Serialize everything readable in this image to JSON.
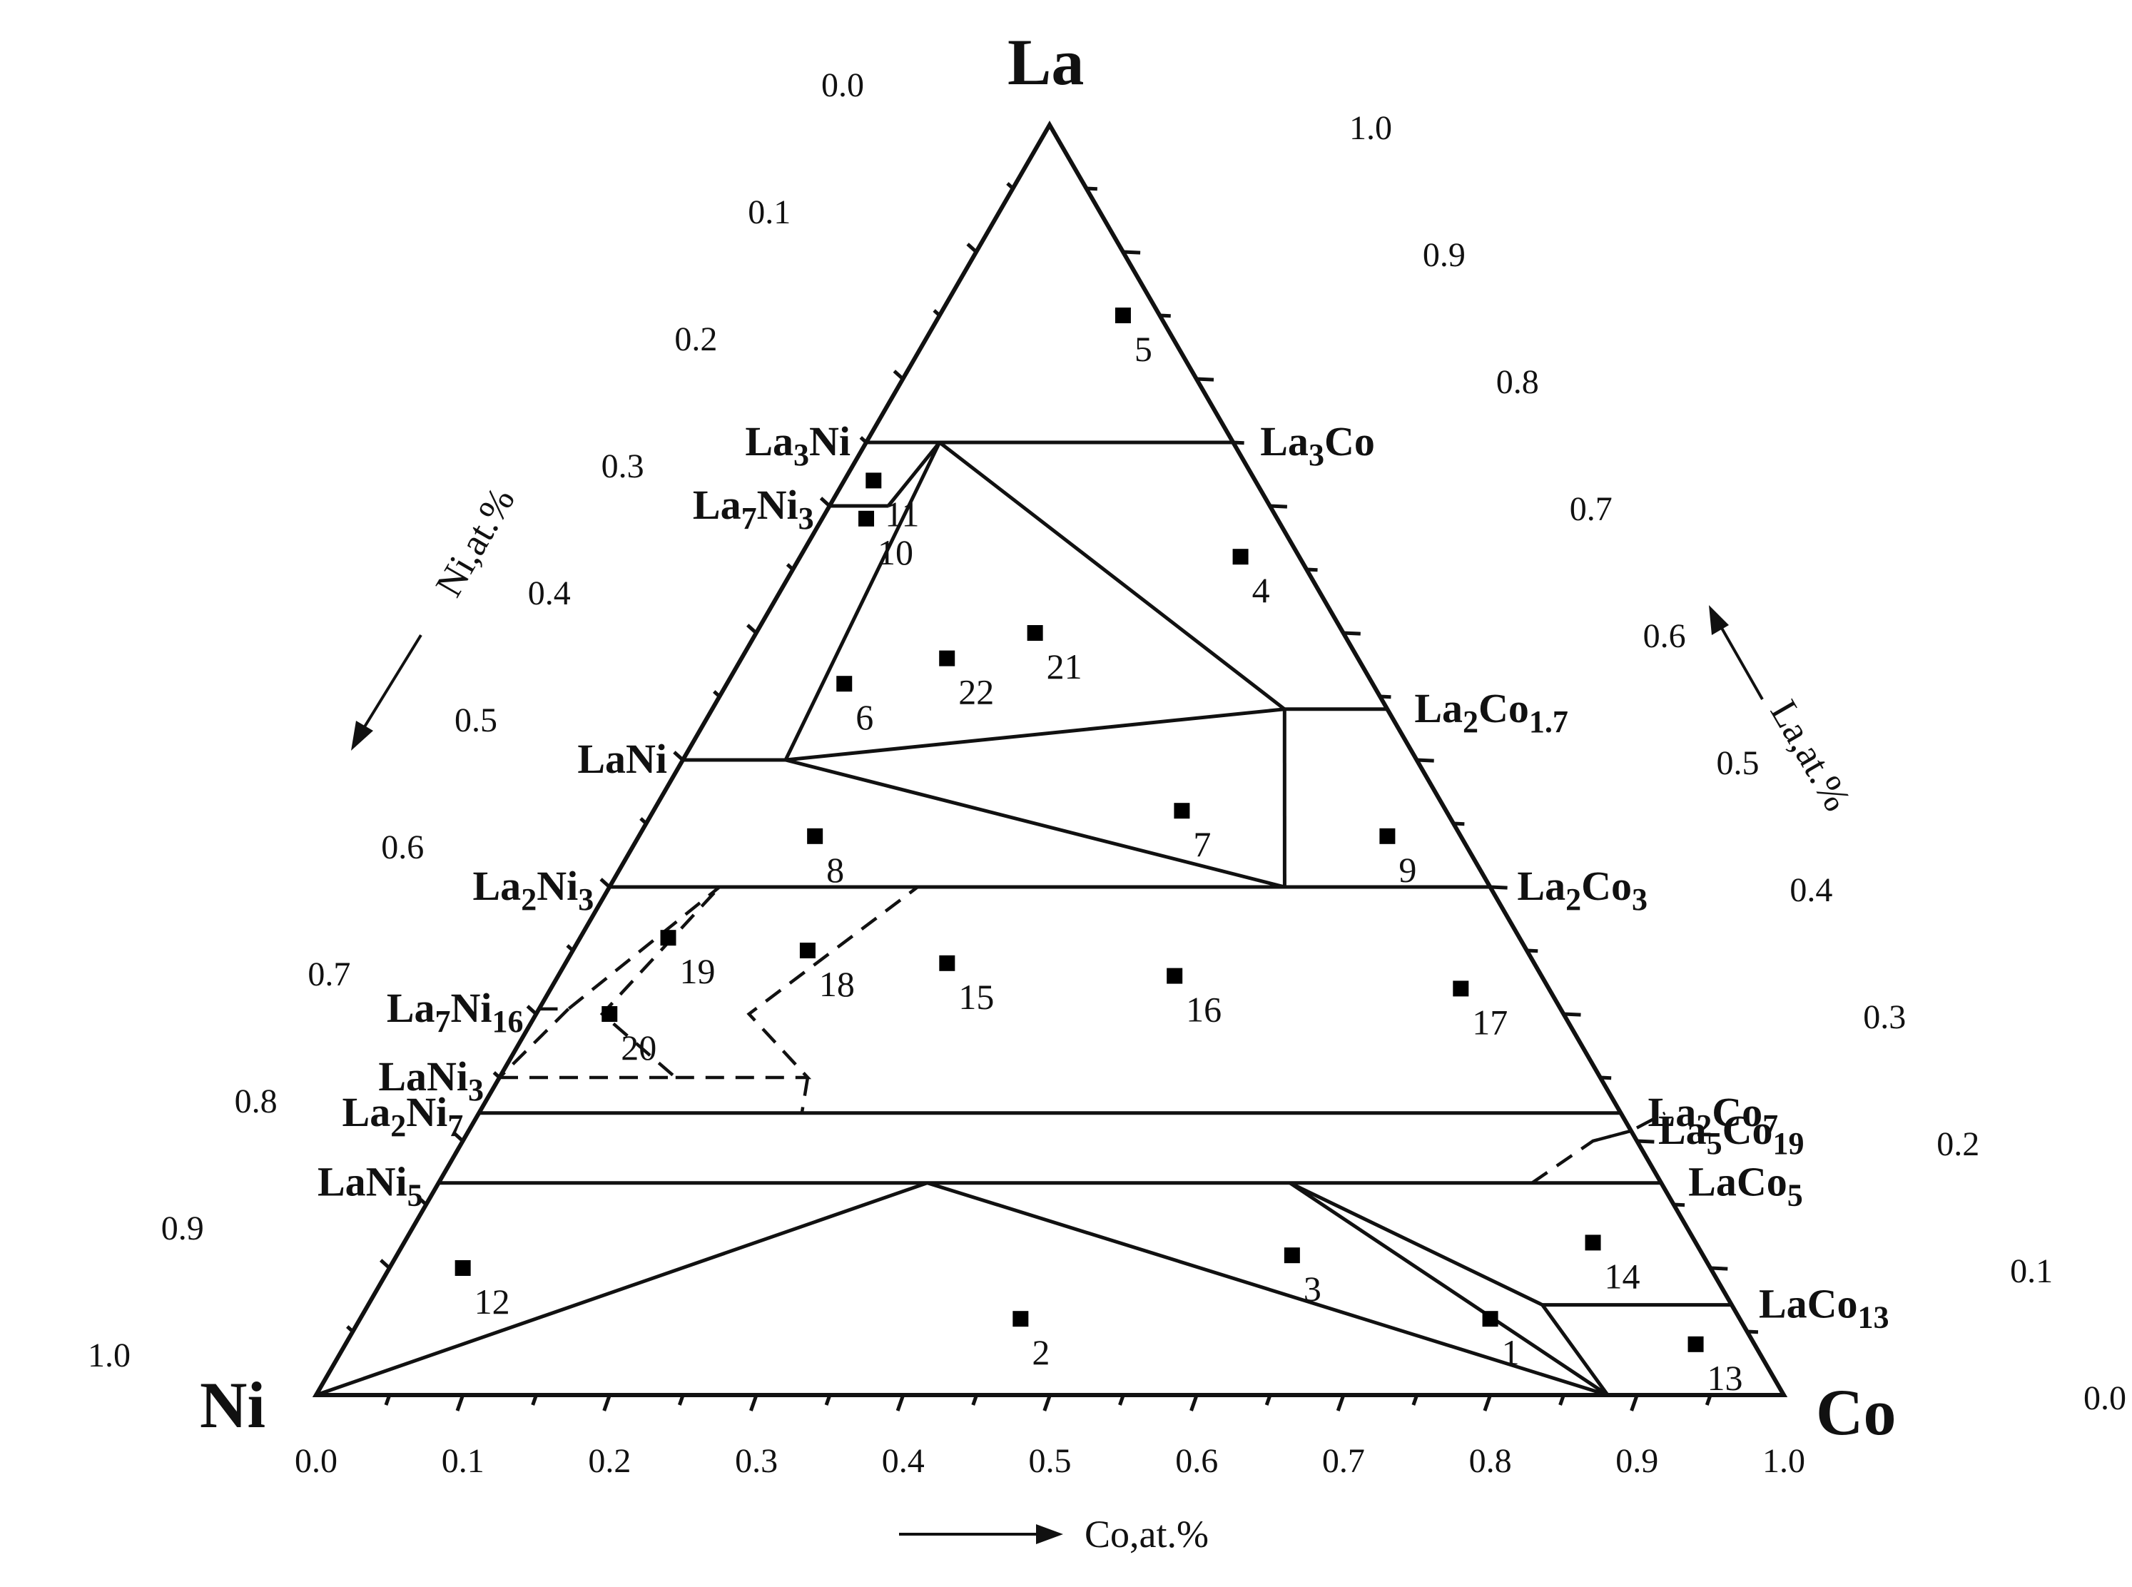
{
  "vertices": {
    "top": "La",
    "left": "Ni",
    "right": "Co"
  },
  "axes": {
    "bottom": {
      "title": "Co,at.%",
      "ticks": [
        "0.0",
        "0.1",
        "0.2",
        "0.3",
        "0.4",
        "0.5",
        "0.6",
        "0.7",
        "0.8",
        "0.9",
        "1.0"
      ]
    },
    "left": {
      "title": "Ni,at.%",
      "ticks": [
        "0.0",
        "0.1",
        "0.2",
        "0.3",
        "0.4",
        "0.5",
        "0.6",
        "0.7",
        "0.8",
        "0.9",
        "1.0"
      ]
    },
    "right": {
      "title": "La,at.%",
      "ticks": [
        "1.0",
        "0.9",
        "0.8",
        "0.7",
        "0.6",
        "0.5",
        "0.4",
        "0.3",
        "0.2",
        "0.1",
        "0.0"
      ]
    }
  },
  "phases": {
    "ni_side": [
      {
        "base": "La",
        "n1": "3",
        "el": "Ni",
        "n2": "",
        "la": 0.75
      },
      {
        "base": "La",
        "n1": "7",
        "el": "Ni",
        "n2": "3",
        "la": 0.7
      },
      {
        "base": "La",
        "n1": "",
        "el": "Ni",
        "n2": "",
        "la": 0.5
      },
      {
        "base": "La",
        "n1": "2",
        "el": "Ni",
        "n2": "3",
        "la": 0.4
      },
      {
        "base": "La",
        "n1": "7",
        "el": "Ni",
        "n2": "16",
        "la": 0.304
      },
      {
        "base": "La",
        "n1": "",
        "el": "Ni",
        "n2": "3",
        "la": 0.25
      },
      {
        "base": "La",
        "n1": "2",
        "el": "Ni",
        "n2": "7",
        "la": 0.222
      },
      {
        "base": "La",
        "n1": "",
        "el": "Ni",
        "n2": "5",
        "la": 0.167
      }
    ],
    "co_side": [
      {
        "base": "La",
        "n1": "3",
        "el": "Co",
        "n2": "",
        "la": 0.75
      },
      {
        "base": "La",
        "n1": "2",
        "el": "Co",
        "n2": "1.7",
        "la": 0.54
      },
      {
        "base": "La",
        "n1": "2",
        "el": "Co",
        "n2": "3",
        "la": 0.4
      },
      {
        "base": "La",
        "n1": "2",
        "el": "Co",
        "n2": "7",
        "la": 0.222
      },
      {
        "base": "La",
        "n1": "5",
        "el": "Co",
        "n2": "19",
        "la": 0.208
      },
      {
        "base": "La",
        "n1": "",
        "el": "Co",
        "n2": "5",
        "la": 0.167
      },
      {
        "base": "La",
        "n1": "",
        "el": "Co",
        "n2": "13",
        "la": 0.071
      }
    ]
  },
  "samples": [
    {
      "label": "1",
      "co": 0.77,
      "la": 0.06
    },
    {
      "label": "2",
      "co": 0.45,
      "la": 0.06
    },
    {
      "label": "3",
      "co": 0.61,
      "la": 0.11
    },
    {
      "label": "4",
      "co": 0.3,
      "la": 0.66
    },
    {
      "label": "5",
      "co": 0.125,
      "la": 0.85
    },
    {
      "label": "6",
      "co": 0.08,
      "la": 0.56
    },
    {
      "label": "7",
      "co": 0.36,
      "la": 0.46
    },
    {
      "label": "8",
      "co": 0.12,
      "la": 0.44
    },
    {
      "label": "9",
      "co": 0.51,
      "la": 0.44
    },
    {
      "label": "10",
      "co": 0.03,
      "la": 0.69
    },
    {
      "label": "11",
      "co": 0.02,
      "la": 0.72
    },
    {
      "label": "12",
      "co": 0.05,
      "la": 0.1
    },
    {
      "label": "13",
      "co": 0.92,
      "la": 0.04
    },
    {
      "label": "14",
      "co": 0.81,
      "la": 0.12
    },
    {
      "label": "15",
      "co": 0.26,
      "la": 0.34
    },
    {
      "label": "16",
      "co": 0.42,
      "la": 0.33
    },
    {
      "label": "17",
      "co": 0.62,
      "la": 0.32
    },
    {
      "label": "18",
      "co": 0.16,
      "la": 0.35
    },
    {
      "label": "19",
      "co": 0.06,
      "la": 0.36
    },
    {
      "label": "20",
      "co": 0.05,
      "la": 0.3
    },
    {
      "label": "21",
      "co": 0.19,
      "la": 0.6
    },
    {
      "label": "22",
      "co": 0.14,
      "la": 0.58
    }
  ],
  "tie_lines": [
    {
      "style": "solid",
      "points": [
        [
          0.0,
          0.75
        ],
        [
          0.25,
          0.75
        ]
      ]
    },
    {
      "style": "solid",
      "points": [
        [
          0.0,
          0.7
        ],
        [
          0.04,
          0.7
        ]
      ]
    },
    {
      "style": "solid",
      "points": [
        [
          0.0,
          0.5
        ],
        [
          0.07,
          0.5
        ]
      ]
    },
    {
      "style": "solid",
      "points": [
        [
          0.0,
          0.4
        ],
        [
          0.6,
          0.4
        ]
      ]
    },
    {
      "style": "solid",
      "points": [
        [
          0.0,
          0.222
        ],
        [
          0.778,
          0.222
        ]
      ]
    },
    {
      "style": "solid",
      "points": [
        [
          0.0,
          0.167
        ],
        [
          0.833,
          0.167
        ]
      ]
    },
    {
      "style": "solid",
      "points": [
        [
          0.39,
          0.54
        ],
        [
          0.46,
          0.54
        ]
      ]
    },
    {
      "style": "solid",
      "points": [
        [
          0.8,
          0.071
        ],
        [
          0.929,
          0.071
        ]
      ]
    },
    {
      "style": "solid",
      "points": [
        [
          0.88,
          0.0
        ],
        [
          1.0,
          0.0
        ]
      ]
    },
    {
      "style": "solid",
      "points": [
        [
          0.0,
          0.0
        ],
        [
          0.333,
          0.167
        ]
      ]
    },
    {
      "style": "solid",
      "points": [
        [
          0.333,
          0.167
        ],
        [
          0.88,
          0.0
        ]
      ]
    },
    {
      "style": "solid",
      "points": [
        [
          0.58,
          0.167
        ],
        [
          0.88,
          0.0
        ]
      ]
    },
    {
      "style": "solid",
      "points": [
        [
          0.58,
          0.167
        ],
        [
          0.8,
          0.071
        ]
      ]
    },
    {
      "style": "solid",
      "points": [
        [
          0.8,
          0.071
        ],
        [
          0.88,
          0.0
        ]
      ]
    },
    {
      "style": "solid",
      "points": [
        [
          0.05,
          0.75
        ],
        [
          0.07,
          0.5
        ]
      ]
    },
    {
      "style": "solid",
      "points": [
        [
          0.05,
          0.75
        ],
        [
          0.39,
          0.54
        ]
      ]
    },
    {
      "style": "solid",
      "points": [
        [
          0.05,
          0.75
        ],
        [
          0.04,
          0.7
        ]
      ]
    },
    {
      "style": "solid",
      "points": [
        [
          0.07,
          0.5
        ],
        [
          0.39,
          0.54
        ]
      ]
    },
    {
      "style": "solid",
      "points": [
        [
          0.07,
          0.5
        ],
        [
          0.46,
          0.4
        ]
      ]
    },
    {
      "style": "solid",
      "points": [
        [
          0.39,
          0.54
        ],
        [
          0.46,
          0.4
        ]
      ]
    },
    {
      "style": "dashed",
      "points": [
        [
          0.0,
          0.304
        ],
        [
          0.02,
          0.304
        ],
        [
          0.075,
          0.4
        ]
      ]
    },
    {
      "style": "dashed",
      "points": [
        [
          0.02,
          0.304
        ],
        [
          0.0,
          0.25
        ]
      ]
    },
    {
      "style": "dashed",
      "points": [
        [
          0.0,
          0.25
        ],
        [
          0.12,
          0.25
        ],
        [
          0.045,
          0.3
        ],
        [
          0.075,
          0.4
        ]
      ]
    },
    {
      "style": "dashed",
      "points": [
        [
          0.12,
          0.25
        ],
        [
          0.21,
          0.25
        ],
        [
          0.145,
          0.3
        ],
        [
          0.21,
          0.4
        ]
      ]
    },
    {
      "style": "dashed",
      "points": [
        [
          0.21,
          0.25
        ],
        [
          0.22,
          0.222
        ]
      ]
    },
    {
      "style": "dashed",
      "points": [
        [
          0.745,
          0.167
        ],
        [
          0.77,
          0.2
        ],
        [
          0.792,
          0.208
        ],
        [
          0.808,
          0.222
        ]
      ]
    },
    {
      "style": "dashed",
      "points": [
        [
          0.77,
          0.2
        ],
        [
          0.792,
          0.208
        ]
      ]
    }
  ]
}
